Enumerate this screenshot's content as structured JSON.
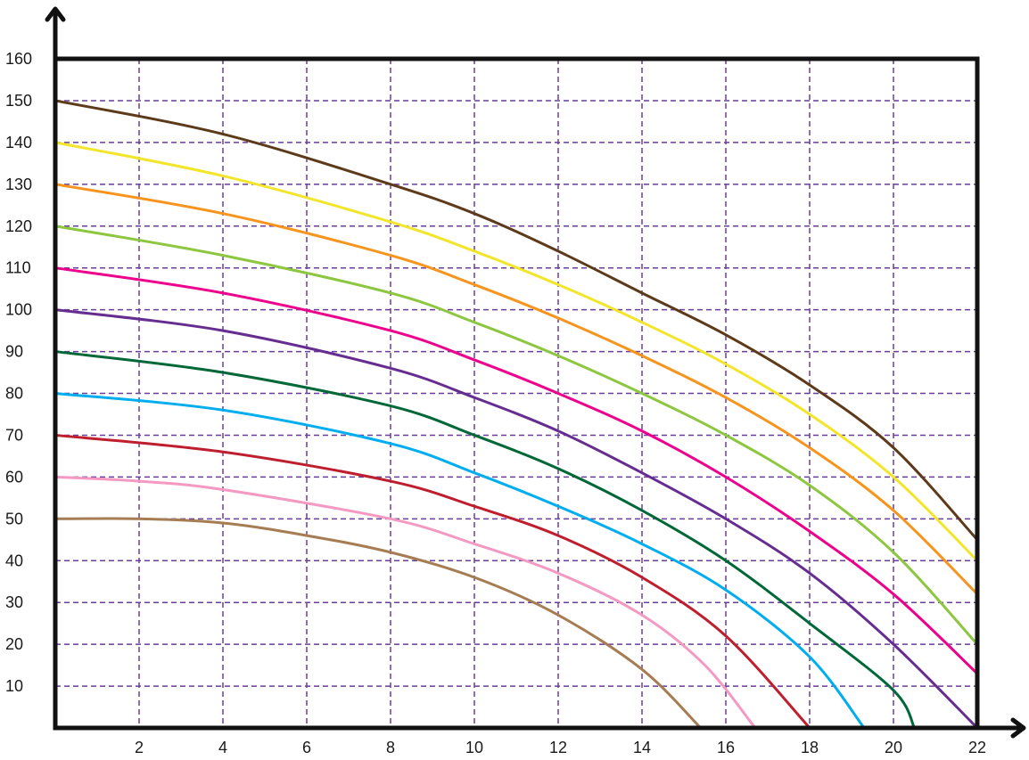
{
  "chart_data": {
    "type": "line",
    "title": "",
    "xlabel": "",
    "ylabel": "",
    "xlim": [
      0,
      22
    ],
    "ylim": [
      0,
      160
    ],
    "grid": true,
    "x_ticks": [
      2,
      4,
      6,
      8,
      10,
      12,
      14,
      16,
      18,
      20,
      22
    ],
    "y_ticks": [
      10,
      20,
      30,
      40,
      50,
      60,
      70,
      80,
      90,
      100,
      110,
      120,
      130,
      140,
      150,
      160
    ],
    "series": [
      {
        "color": "#5c3a1a",
        "points": [
          [
            0,
            150
          ],
          [
            4,
            142
          ],
          [
            8,
            130
          ],
          [
            10,
            123
          ],
          [
            12,
            114
          ],
          [
            14,
            104
          ],
          [
            16,
            94
          ],
          [
            18,
            82
          ],
          [
            20,
            67
          ],
          [
            22,
            45
          ]
        ]
      },
      {
        "color": "#f2e52a",
        "points": [
          [
            0,
            140
          ],
          [
            4,
            132
          ],
          [
            8,
            121
          ],
          [
            10,
            114
          ],
          [
            12,
            106
          ],
          [
            14,
            97
          ],
          [
            16,
            87
          ],
          [
            18,
            75
          ],
          [
            20,
            60
          ],
          [
            22,
            40
          ]
        ]
      },
      {
        "color": "#f7941d",
        "points": [
          [
            0,
            130
          ],
          [
            4,
            123
          ],
          [
            8,
            113
          ],
          [
            10,
            106
          ],
          [
            12,
            98
          ],
          [
            14,
            89
          ],
          [
            16,
            79
          ],
          [
            18,
            67
          ],
          [
            20,
            52
          ],
          [
            22,
            32
          ]
        ]
      },
      {
        "color": "#8dc63f",
        "points": [
          [
            0,
            120
          ],
          [
            4,
            113
          ],
          [
            8,
            104
          ],
          [
            10,
            97
          ],
          [
            12,
            89
          ],
          [
            14,
            80
          ],
          [
            16,
            70
          ],
          [
            18,
            58
          ],
          [
            20,
            42
          ],
          [
            22,
            20
          ]
        ]
      },
      {
        "color": "#ec008c",
        "points": [
          [
            0,
            110
          ],
          [
            4,
            104
          ],
          [
            8,
            95
          ],
          [
            10,
            88
          ],
          [
            12,
            80
          ],
          [
            14,
            71
          ],
          [
            16,
            60
          ],
          [
            18,
            47
          ],
          [
            20,
            32
          ],
          [
            22,
            13
          ]
        ]
      },
      {
        "color": "#662d91",
        "points": [
          [
            0,
            100
          ],
          [
            4,
            95
          ],
          [
            8,
            86
          ],
          [
            10,
            79
          ],
          [
            12,
            71
          ],
          [
            14,
            61
          ],
          [
            16,
            50
          ],
          [
            18,
            37
          ],
          [
            20,
            20
          ],
          [
            22,
            0
          ]
        ]
      },
      {
        "color": "#006838",
        "points": [
          [
            0,
            90
          ],
          [
            4,
            85
          ],
          [
            8,
            77
          ],
          [
            10,
            70
          ],
          [
            12,
            62
          ],
          [
            14,
            52
          ],
          [
            16,
            40
          ],
          [
            18,
            25
          ],
          [
            20,
            9
          ],
          [
            20.5,
            0
          ]
        ]
      },
      {
        "color": "#00aeef",
        "points": [
          [
            0,
            80
          ],
          [
            4,
            76
          ],
          [
            8,
            68
          ],
          [
            10,
            61
          ],
          [
            12,
            53
          ],
          [
            14,
            44
          ],
          [
            16,
            33
          ],
          [
            18,
            17
          ],
          [
            19.3,
            0
          ]
        ]
      },
      {
        "color": "#be1e2d",
        "points": [
          [
            0,
            70
          ],
          [
            4,
            66
          ],
          [
            8,
            59
          ],
          [
            10,
            53
          ],
          [
            12,
            46
          ],
          [
            14,
            36
          ],
          [
            16,
            22
          ],
          [
            18,
            0
          ]
        ]
      },
      {
        "color": "#f49ac2",
        "points": [
          [
            0,
            60
          ],
          [
            2,
            59
          ],
          [
            4,
            57
          ],
          [
            8,
            50
          ],
          [
            10,
            44
          ],
          [
            12,
            37
          ],
          [
            14,
            27
          ],
          [
            15.5,
            15
          ],
          [
            16.7,
            0
          ]
        ]
      },
      {
        "color": "#a67c52",
        "points": [
          [
            0,
            50
          ],
          [
            2,
            50
          ],
          [
            4,
            49
          ],
          [
            6,
            46
          ],
          [
            8,
            42
          ],
          [
            10,
            36
          ],
          [
            12,
            27
          ],
          [
            14,
            14
          ],
          [
            15.4,
            0
          ]
        ]
      }
    ]
  }
}
